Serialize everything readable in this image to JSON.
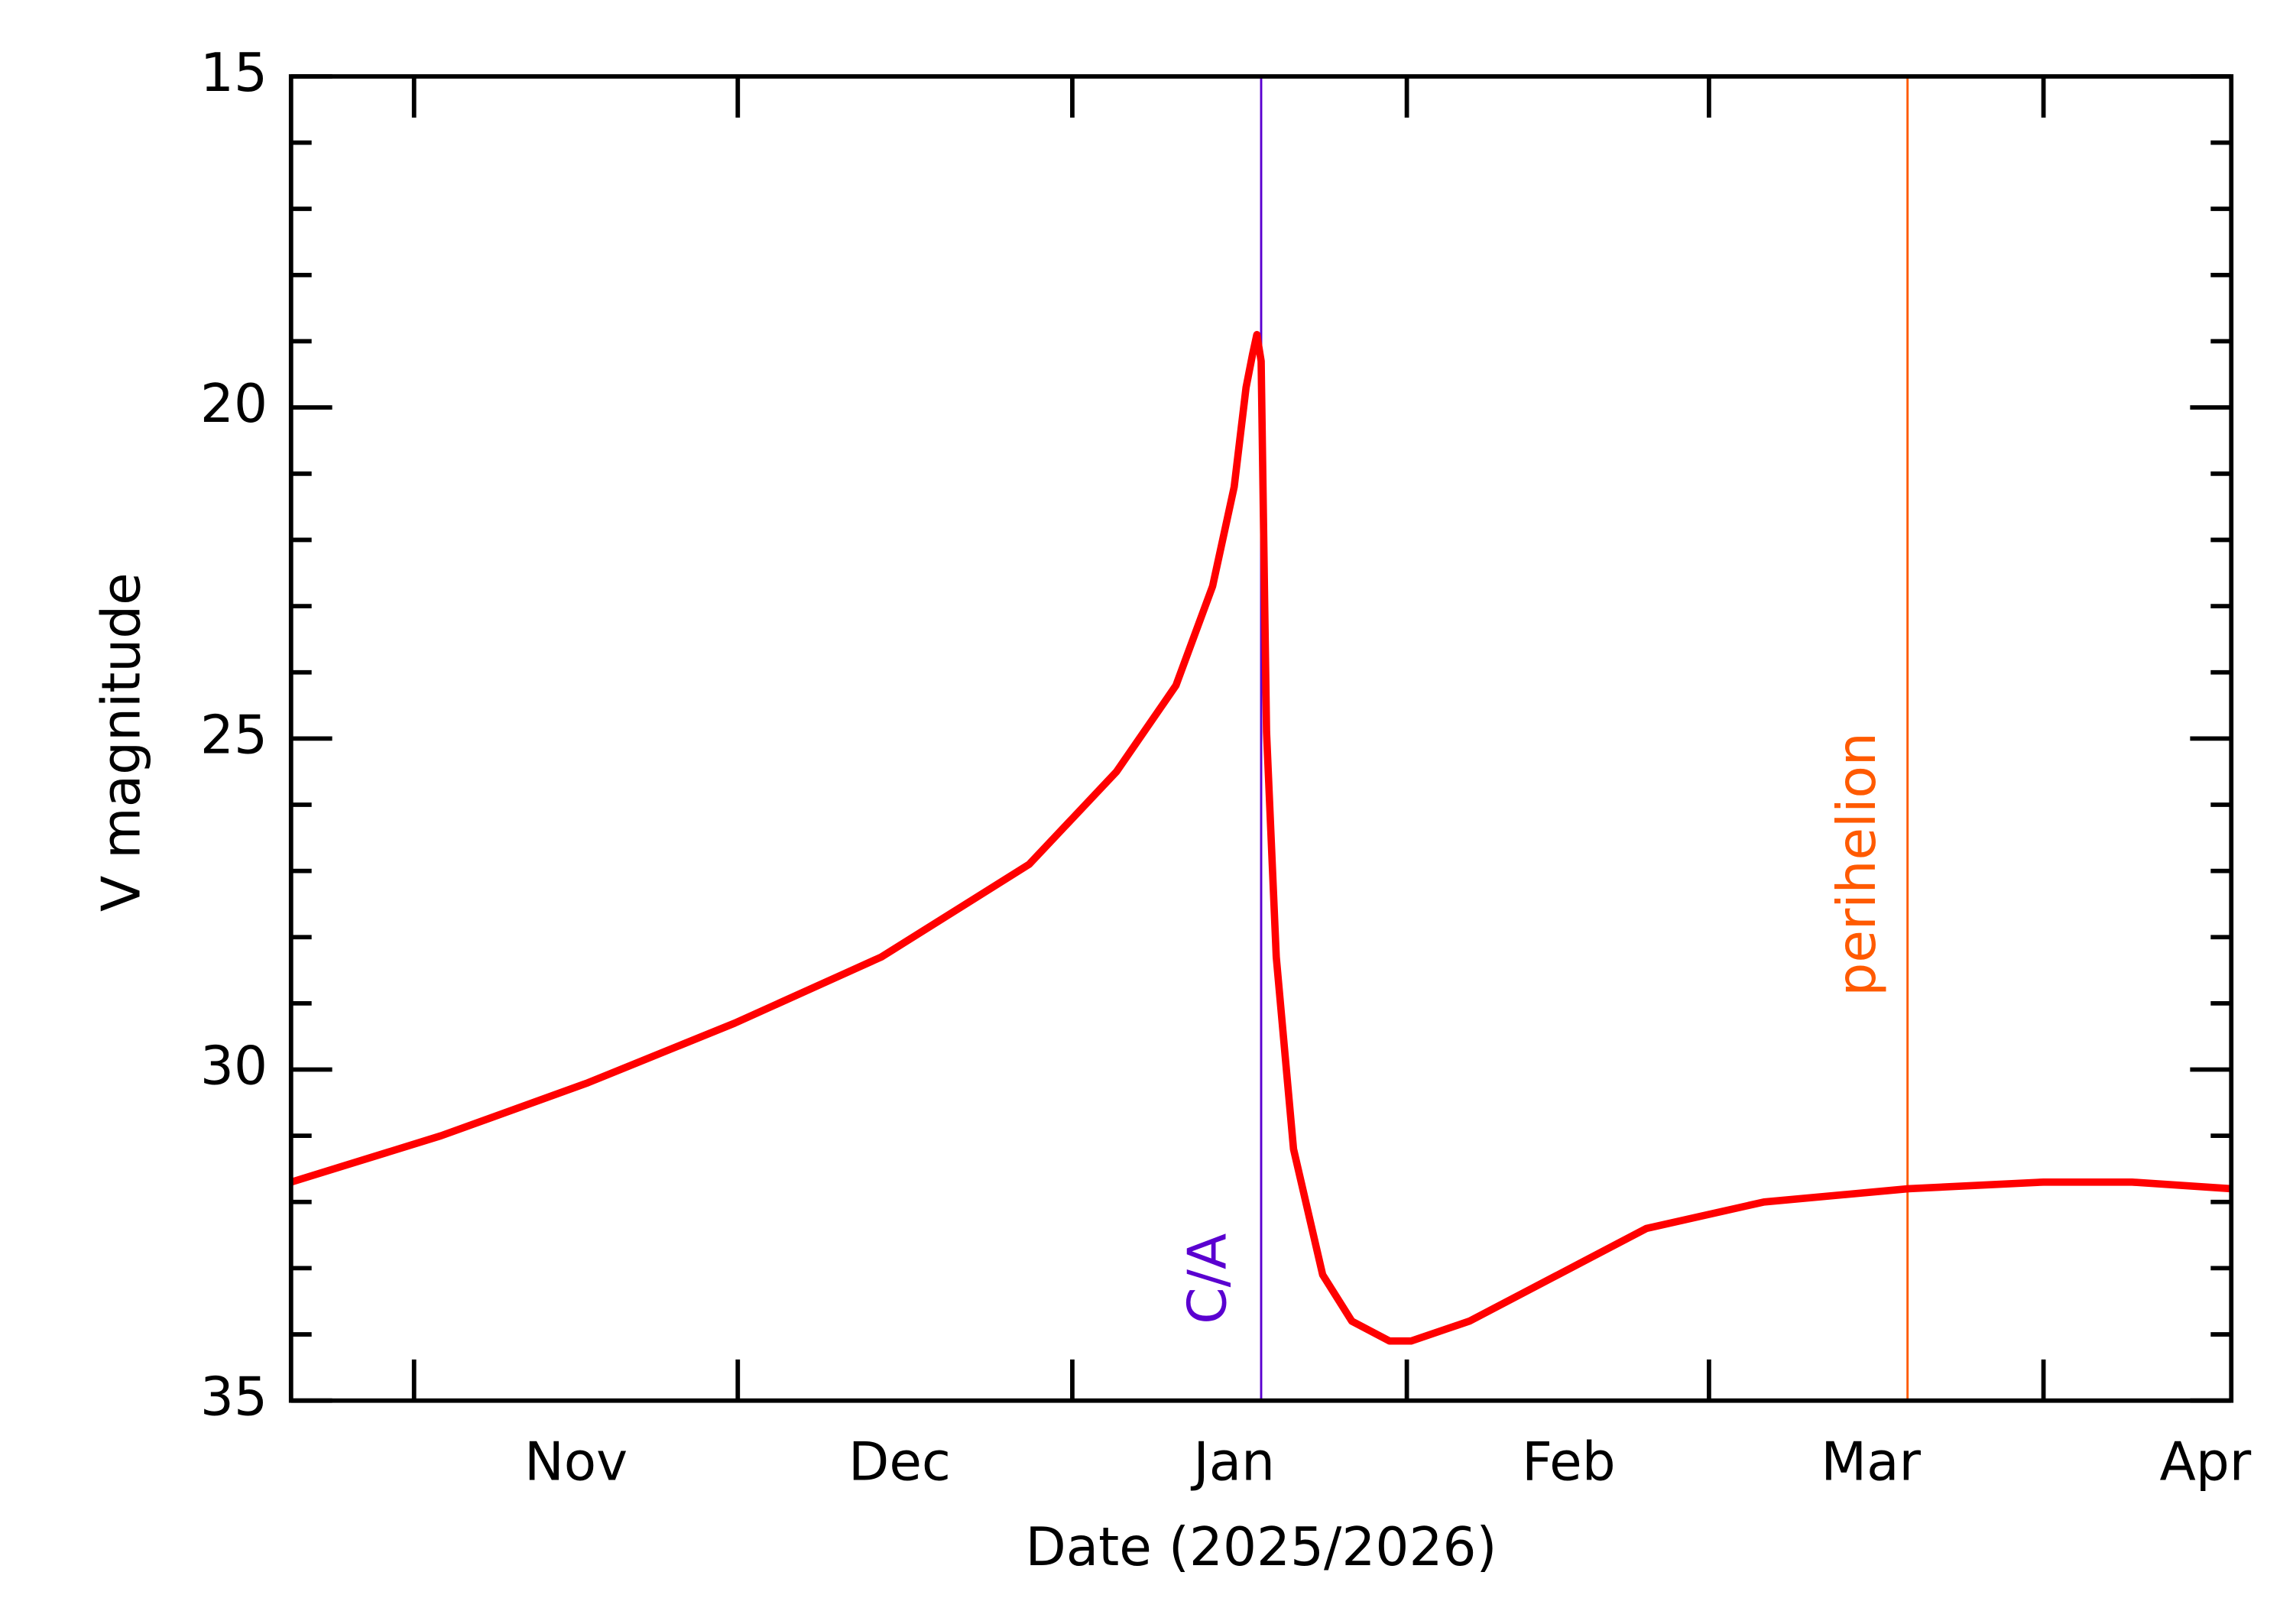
{
  "chart_data": {
    "type": "line",
    "x_label": "Date (2025/2026)",
    "y_label": "V magnitude",
    "x": [
      -11.4,
      2.5,
      16.1,
      29.7,
      43.3,
      57.0,
      65.1,
      70.6,
      74.0,
      76.0,
      77.1,
      77.7,
      78.1,
      78.5,
      79.0,
      79.9,
      81.5,
      84.2,
      86.9,
      90.4,
      92.4,
      97.8,
      106.0,
      114.2,
      125.1,
      138.5,
      151.0,
      159.2,
      168.4
    ],
    "series": [
      {
        "color": "#ff0000",
        "values": [
          31.7,
          31.0,
          30.2,
          29.3,
          28.3,
          26.9,
          25.5,
          24.2,
          22.7,
          21.2,
          19.7,
          19.2,
          18.9,
          19.3,
          24.9,
          28.3,
          31.2,
          33.1,
          33.8,
          34.1,
          34.1,
          33.8,
          33.1,
          32.4,
          32.0,
          31.8,
          31.7,
          31.7,
          31.8
        ]
      }
    ],
    "xlim": [
      -11.4,
      168.4
    ],
    "xticks": [
      {
        "value": 0,
        "label": "Nov"
      },
      {
        "value": 30,
        "label": "Dec"
      },
      {
        "value": 61,
        "label": "Jan"
      },
      {
        "value": 92,
        "label": "Feb"
      },
      {
        "value": 120,
        "label": "Mar"
      },
      {
        "value": 151,
        "label": "Apr"
      }
    ],
    "ylim": [
      15,
      35
    ],
    "yticks": [
      15,
      20,
      25,
      30,
      35
    ],
    "y_inverted": true,
    "annotations": [
      {
        "x": 78.5,
        "label": "C/A",
        "color": "#5a00d0"
      },
      {
        "x": 138.4,
        "label": "perihelion",
        "color": "#ff5a00"
      }
    ]
  }
}
